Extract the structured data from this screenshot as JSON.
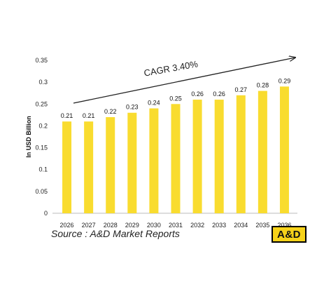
{
  "chart_data": {
    "type": "bar",
    "categories": [
      "2026",
      "2027",
      "2028",
      "2029",
      "2030",
      "2031",
      "2032",
      "2033",
      "2034",
      "2035",
      "2036"
    ],
    "values": [
      0.21,
      0.21,
      0.22,
      0.23,
      0.24,
      0.25,
      0.26,
      0.26,
      0.27,
      0.28,
      0.29
    ],
    "data_labels": [
      "0.21",
      "0.21",
      "0.22",
      "0.23",
      "0.24",
      "0.25",
      "0.26",
      "0.26",
      "0.27",
      "0.28",
      "0.29"
    ],
    "ylabel": "In USD Billion",
    "ylim": [
      0,
      0.35
    ],
    "yticks": [
      "0",
      "0.05",
      "0.1",
      "0.15",
      "0.2",
      "0.25",
      "0.3",
      "0.35"
    ],
    "grid": false,
    "annotation": "CAGR 3.40%",
    "bar_color": "#f9dc2f"
  },
  "source": "Source : A&D Market Reports",
  "logo_text": "A&D"
}
